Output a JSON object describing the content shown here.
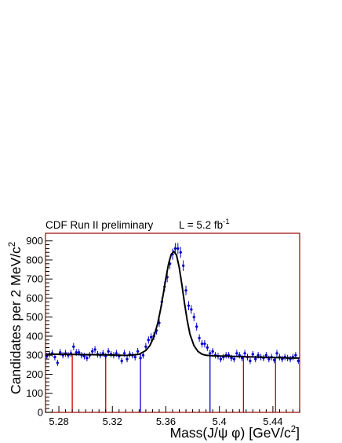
{
  "header": {
    "left": "CDF Run II preliminary",
    "lumi_prefix": "L = 5.2 fb",
    "lumi_exp": "-1"
  },
  "chart_data": {
    "type": "scatter",
    "title": "",
    "xlabel_main": "Mass(J/ψ φ) [GeV/c",
    "xlabel_exp": "2",
    "xlabel_close": "]",
    "ylabel_main": "Candidates per 2 MeV/c",
    "ylabel_exp": "2",
    "xlim": [
      5.27,
      5.46
    ],
    "ylim": [
      0,
      940
    ],
    "x_ticks": [
      5.28,
      5.32,
      5.36,
      5.4,
      5.44
    ],
    "x_tick_labels": [
      "5.28",
      "5.32",
      "5.36",
      "5.4",
      "5.44"
    ],
    "y_ticks": [
      0,
      100,
      200,
      300,
      400,
      500,
      600,
      700,
      800,
      900
    ],
    "y_tick_labels": [
      "0",
      "100",
      "200",
      "300",
      "400",
      "500",
      "600",
      "700",
      "800",
      "900"
    ],
    "series": [
      {
        "type": "points_with_errors",
        "color": "#0000cc",
        "x": [
          5.271,
          5.273,
          5.275,
          5.277,
          5.279,
          5.281,
          5.283,
          5.285,
          5.287,
          5.289,
          5.291,
          5.293,
          5.295,
          5.297,
          5.299,
          5.301,
          5.303,
          5.305,
          5.307,
          5.309,
          5.311,
          5.313,
          5.315,
          5.317,
          5.319,
          5.321,
          5.323,
          5.325,
          5.327,
          5.329,
          5.331,
          5.333,
          5.335,
          5.337,
          5.339,
          5.341,
          5.343,
          5.345,
          5.347,
          5.349,
          5.351,
          5.353,
          5.355,
          5.357,
          5.359,
          5.361,
          5.363,
          5.365,
          5.367,
          5.369,
          5.371,
          5.373,
          5.375,
          5.377,
          5.379,
          5.381,
          5.383,
          5.385,
          5.387,
          5.389,
          5.391,
          5.393,
          5.395,
          5.397,
          5.399,
          5.401,
          5.403,
          5.405,
          5.407,
          5.409,
          5.411,
          5.413,
          5.415,
          5.417,
          5.419,
          5.421,
          5.423,
          5.425,
          5.427,
          5.429,
          5.431,
          5.433,
          5.435,
          5.437,
          5.439,
          5.441,
          5.443,
          5.445,
          5.447,
          5.449,
          5.451,
          5.453,
          5.455,
          5.457,
          5.459
        ],
        "y": [
          295,
          305,
          310,
          290,
          260,
          315,
          300,
          310,
          300,
          310,
          345,
          315,
          315,
          300,
          295,
          285,
          300,
          320,
          330,
          305,
          300,
          310,
          295,
          320,
          305,
          300,
          310,
          295,
          270,
          310,
          280,
          305,
          300,
          290,
          320,
          285,
          300,
          345,
          380,
          395,
          400,
          430,
          470,
          580,
          660,
          710,
          780,
          830,
          860,
          860,
          840,
          770,
          640,
          560,
          540,
          500,
          450,
          390,
          360,
          360,
          340,
          310,
          320,
          300,
          295,
          280,
          290,
          300,
          300,
          285,
          280,
          310,
          300,
          285,
          310,
          290,
          270,
          305,
          280,
          300,
          290,
          285,
          300,
          280,
          290,
          275,
          310,
          290,
          280,
          290,
          285,
          280,
          290,
          300,
          270
        ],
        "err": [
          17,
          17,
          18,
          17,
          16,
          18,
          17,
          18,
          17,
          18,
          19,
          18,
          18,
          17,
          17,
          17,
          17,
          18,
          18,
          17,
          17,
          18,
          17,
          18,
          17,
          17,
          18,
          17,
          16,
          18,
          17,
          17,
          17,
          17,
          18,
          17,
          17,
          19,
          19,
          20,
          20,
          21,
          22,
          24,
          26,
          27,
          28,
          29,
          29,
          29,
          29,
          28,
          25,
          24,
          23,
          22,
          21,
          20,
          19,
          19,
          18,
          18,
          18,
          17,
          17,
          17,
          17,
          17,
          17,
          17,
          17,
          18,
          17,
          17,
          18,
          17,
          16,
          17,
          17,
          17,
          17,
          17,
          17,
          17,
          17,
          17,
          18,
          17,
          17,
          17,
          17,
          17,
          17,
          17,
          16
        ]
      },
      {
        "type": "fit_curve",
        "color": "#000000",
        "x": [
          5.27,
          5.275,
          5.28,
          5.285,
          5.29,
          5.295,
          5.3,
          5.305,
          5.31,
          5.315,
          5.32,
          5.325,
          5.33,
          5.335,
          5.34,
          5.345,
          5.348,
          5.351,
          5.354,
          5.356,
          5.358,
          5.36,
          5.362,
          5.364,
          5.366,
          5.368,
          5.37,
          5.372,
          5.374,
          5.376,
          5.378,
          5.381,
          5.384,
          5.387,
          5.39,
          5.395,
          5.4,
          5.405,
          5.41,
          5.415,
          5.42,
          5.425,
          5.43,
          5.435,
          5.44,
          5.445,
          5.45,
          5.455,
          5.46
        ],
        "y": [
          305,
          305,
          305,
          305,
          304,
          304,
          303,
          303,
          302,
          302,
          301,
          300,
          299,
          301,
          305,
          325,
          350,
          395,
          470,
          540,
          620,
          705,
          780,
          830,
          845,
          825,
          760,
          670,
          570,
          480,
          410,
          350,
          320,
          305,
          300,
          297,
          296,
          295,
          294,
          293,
          292,
          291,
          290,
          289,
          288,
          287,
          286,
          285,
          285
        ]
      }
    ],
    "vertical_lines": [
      {
        "x": 5.29,
        "y": 305,
        "color": "#cc0000"
      },
      {
        "x": 5.315,
        "y": 302,
        "color": "#cc0000"
      },
      {
        "x": 5.341,
        "y": 306,
        "color": "#0000cc"
      },
      {
        "x": 5.393,
        "y": 296,
        "color": "#0000cc"
      },
      {
        "x": 5.418,
        "y": 292,
        "color": "#cc0000"
      },
      {
        "x": 5.442,
        "y": 288,
        "color": "#cc0000"
      }
    ],
    "grid": false,
    "frame_color": "#990000"
  }
}
